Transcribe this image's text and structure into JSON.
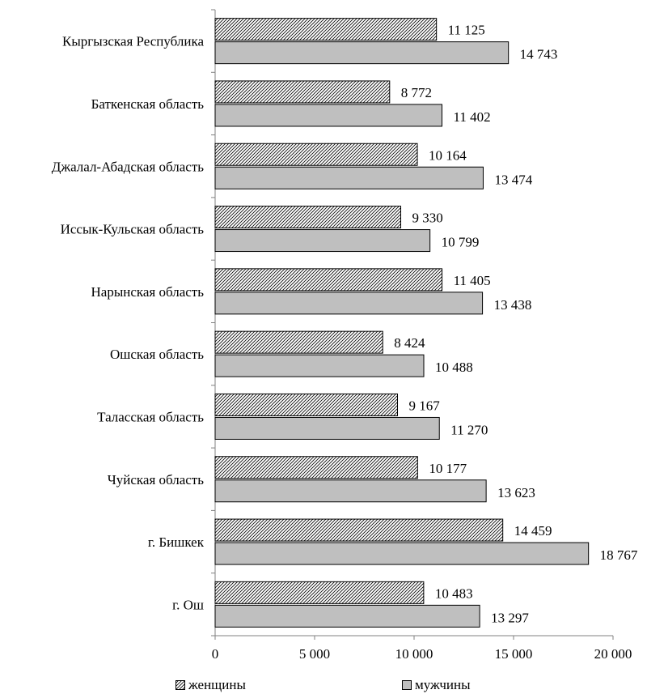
{
  "chart_data": {
    "type": "bar",
    "orientation": "horizontal",
    "categories": [
      "Кыргызская Республика",
      "Баткенская область",
      "Джалал-Абадская область",
      "Иссык-Кульская область",
      "Нарынская область",
      "Ошская область",
      "Таласская область",
      "Чуйская область",
      "г. Бишкек",
      "г. Ош"
    ],
    "series": [
      {
        "name": "женщины",
        "values": [
          11125,
          8772,
          10164,
          9330,
          11405,
          8424,
          9167,
          10177,
          14459,
          10483
        ],
        "labels": [
          "11 125",
          "8 772",
          "10 164",
          "9 330",
          "11 405",
          "8 424",
          "9 167",
          "10 177",
          "14 459",
          "10 483"
        ],
        "fill": "hatched",
        "color": "#000000"
      },
      {
        "name": "мужчины",
        "values": [
          14743,
          11402,
          13474,
          10799,
          13438,
          10488,
          11270,
          13623,
          18767,
          13297
        ],
        "labels": [
          "14 743",
          "11 402",
          "13 474",
          "10 799",
          "13 438",
          "10 488",
          "11 270",
          "13 623",
          "18 767",
          "13 297"
        ],
        "fill": "solid",
        "color": "#bfbfbf"
      }
    ],
    "xlim": [
      0,
      20000
    ],
    "xticks": [
      0,
      5000,
      10000,
      15000,
      20000
    ],
    "xtick_labels": [
      "0",
      "5 000",
      "10 000",
      "15 000",
      "20 000"
    ],
    "grid": false,
    "legend_position": "bottom"
  }
}
